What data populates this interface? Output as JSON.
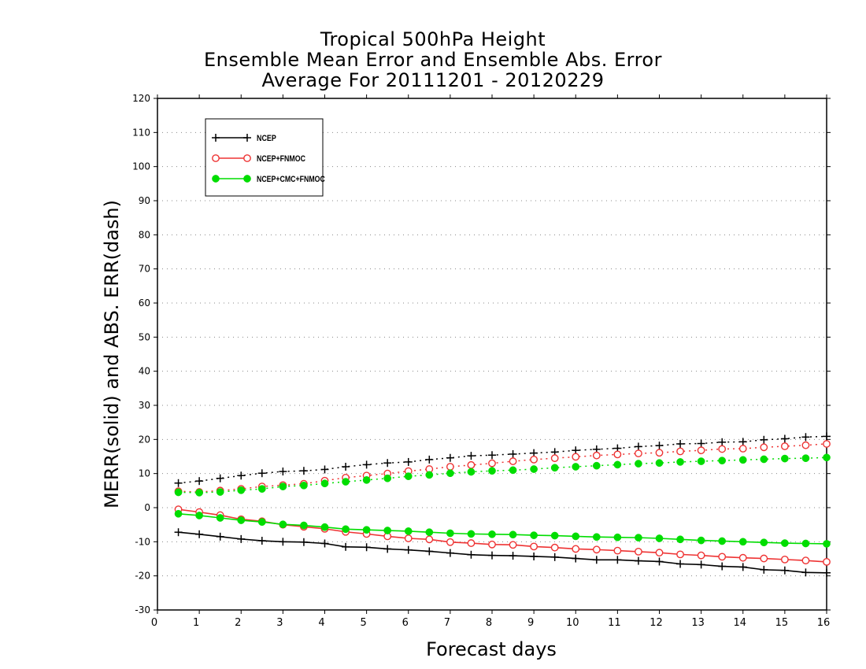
{
  "chart_data": {
    "type": "line",
    "title": [
      "Tropical 500hPa Height",
      "Ensemble Mean Error and Ensemble Abs. Error",
      "Average For 20111201 - 20120229"
    ],
    "xlabel": "Forecast days",
    "ylabel": "MERR(solid) and ABS. ERR(dash)",
    "xlim": [
      0,
      16
    ],
    "ylim": [
      -30,
      120
    ],
    "xticks": [
      0,
      1,
      2,
      3,
      4,
      5,
      6,
      7,
      8,
      9,
      10,
      11,
      12,
      13,
      14,
      15,
      16
    ],
    "yticks": [
      -30,
      -20,
      -10,
      0,
      10,
      20,
      30,
      40,
      50,
      60,
      70,
      80,
      90,
      100,
      110,
      120
    ],
    "grid": "horizontal dotted",
    "legend_position": "top-left",
    "x": [
      0.5,
      1,
      1.5,
      2,
      2.5,
      3,
      3.5,
      4,
      4.5,
      5,
      5.5,
      6,
      6.5,
      7,
      7.5,
      8,
      8.5,
      9,
      9.5,
      10,
      10.5,
      11,
      11.5,
      12,
      12.5,
      13,
      13.5,
      14,
      14.5,
      15,
      15.5,
      16
    ],
    "series": [
      {
        "name": "NCEP",
        "color": "#000000",
        "marker": "plus",
        "mean_error": [
          -7.2,
          -7.8,
          -8.5,
          -9.2,
          -9.7,
          -10.0,
          -10.1,
          -10.5,
          -11.5,
          -11.6,
          -12.1,
          -12.4,
          -12.8,
          -13.3,
          -13.8,
          -14.0,
          -14.1,
          -14.3,
          -14.5,
          -14.9,
          -15.3,
          -15.3,
          -15.6,
          -15.8,
          -16.5,
          -16.7,
          -17.2,
          -17.4,
          -18.2,
          -18.4,
          -19.0,
          -19.1
        ],
        "abs_error": [
          7.2,
          7.8,
          8.6,
          9.4,
          10.1,
          10.6,
          10.8,
          11.2,
          12.0,
          12.6,
          13.1,
          13.4,
          14.1,
          14.6,
          15.2,
          15.4,
          15.7,
          16.0,
          16.3,
          16.8,
          17.1,
          17.4,
          17.9,
          18.2,
          18.7,
          18.8,
          19.2,
          19.3,
          19.9,
          20.2,
          20.7,
          20.9
        ]
      },
      {
        "name": "NCEP+FNMOC",
        "color": "#ee3333",
        "marker": "open-circle",
        "mean_error": [
          -0.5,
          -1.3,
          -2.2,
          -3.4,
          -4.0,
          -5.0,
          -5.6,
          -6.2,
          -7.1,
          -7.7,
          -8.4,
          -9.0,
          -9.3,
          -10.1,
          -10.4,
          -10.8,
          -10.9,
          -11.4,
          -11.7,
          -12.1,
          -12.3,
          -12.6,
          -12.9,
          -13.2,
          -13.7,
          -14.0,
          -14.4,
          -14.7,
          -14.9,
          -15.2,
          -15.5,
          -15.9
        ],
        "abs_error": [
          4.8,
          4.6,
          5.0,
          5.5,
          6.2,
          6.6,
          7.0,
          7.9,
          8.8,
          9.4,
          10.0,
          10.7,
          11.3,
          12.0,
          12.5,
          13.0,
          13.6,
          14.1,
          14.5,
          14.9,
          15.3,
          15.6,
          15.9,
          16.1,
          16.5,
          16.8,
          17.2,
          17.3,
          17.7,
          18.0,
          18.3,
          18.7
        ]
      },
      {
        "name": "NCEP+CMC+FNMOC",
        "color": "#00dd00",
        "marker": "filled-circle",
        "mean_error": [
          -1.8,
          -2.3,
          -3.0,
          -3.7,
          -4.2,
          -4.9,
          -5.2,
          -5.7,
          -6.3,
          -6.5,
          -6.7,
          -6.9,
          -7.2,
          -7.5,
          -7.7,
          -7.8,
          -7.9,
          -8.1,
          -8.2,
          -8.4,
          -8.6,
          -8.7,
          -8.8,
          -9.0,
          -9.3,
          -9.6,
          -9.8,
          -10.0,
          -10.2,
          -10.4,
          -10.5,
          -10.6
        ],
        "abs_error": [
          4.5,
          4.4,
          4.6,
          5.1,
          5.5,
          6.2,
          6.5,
          7.1,
          7.6,
          8.1,
          8.6,
          9.2,
          9.6,
          10.1,
          10.5,
          10.8,
          11.0,
          11.3,
          11.7,
          12.0,
          12.3,
          12.6,
          12.9,
          13.1,
          13.4,
          13.6,
          13.8,
          14.0,
          14.2,
          14.4,
          14.5,
          14.7
        ]
      }
    ]
  }
}
